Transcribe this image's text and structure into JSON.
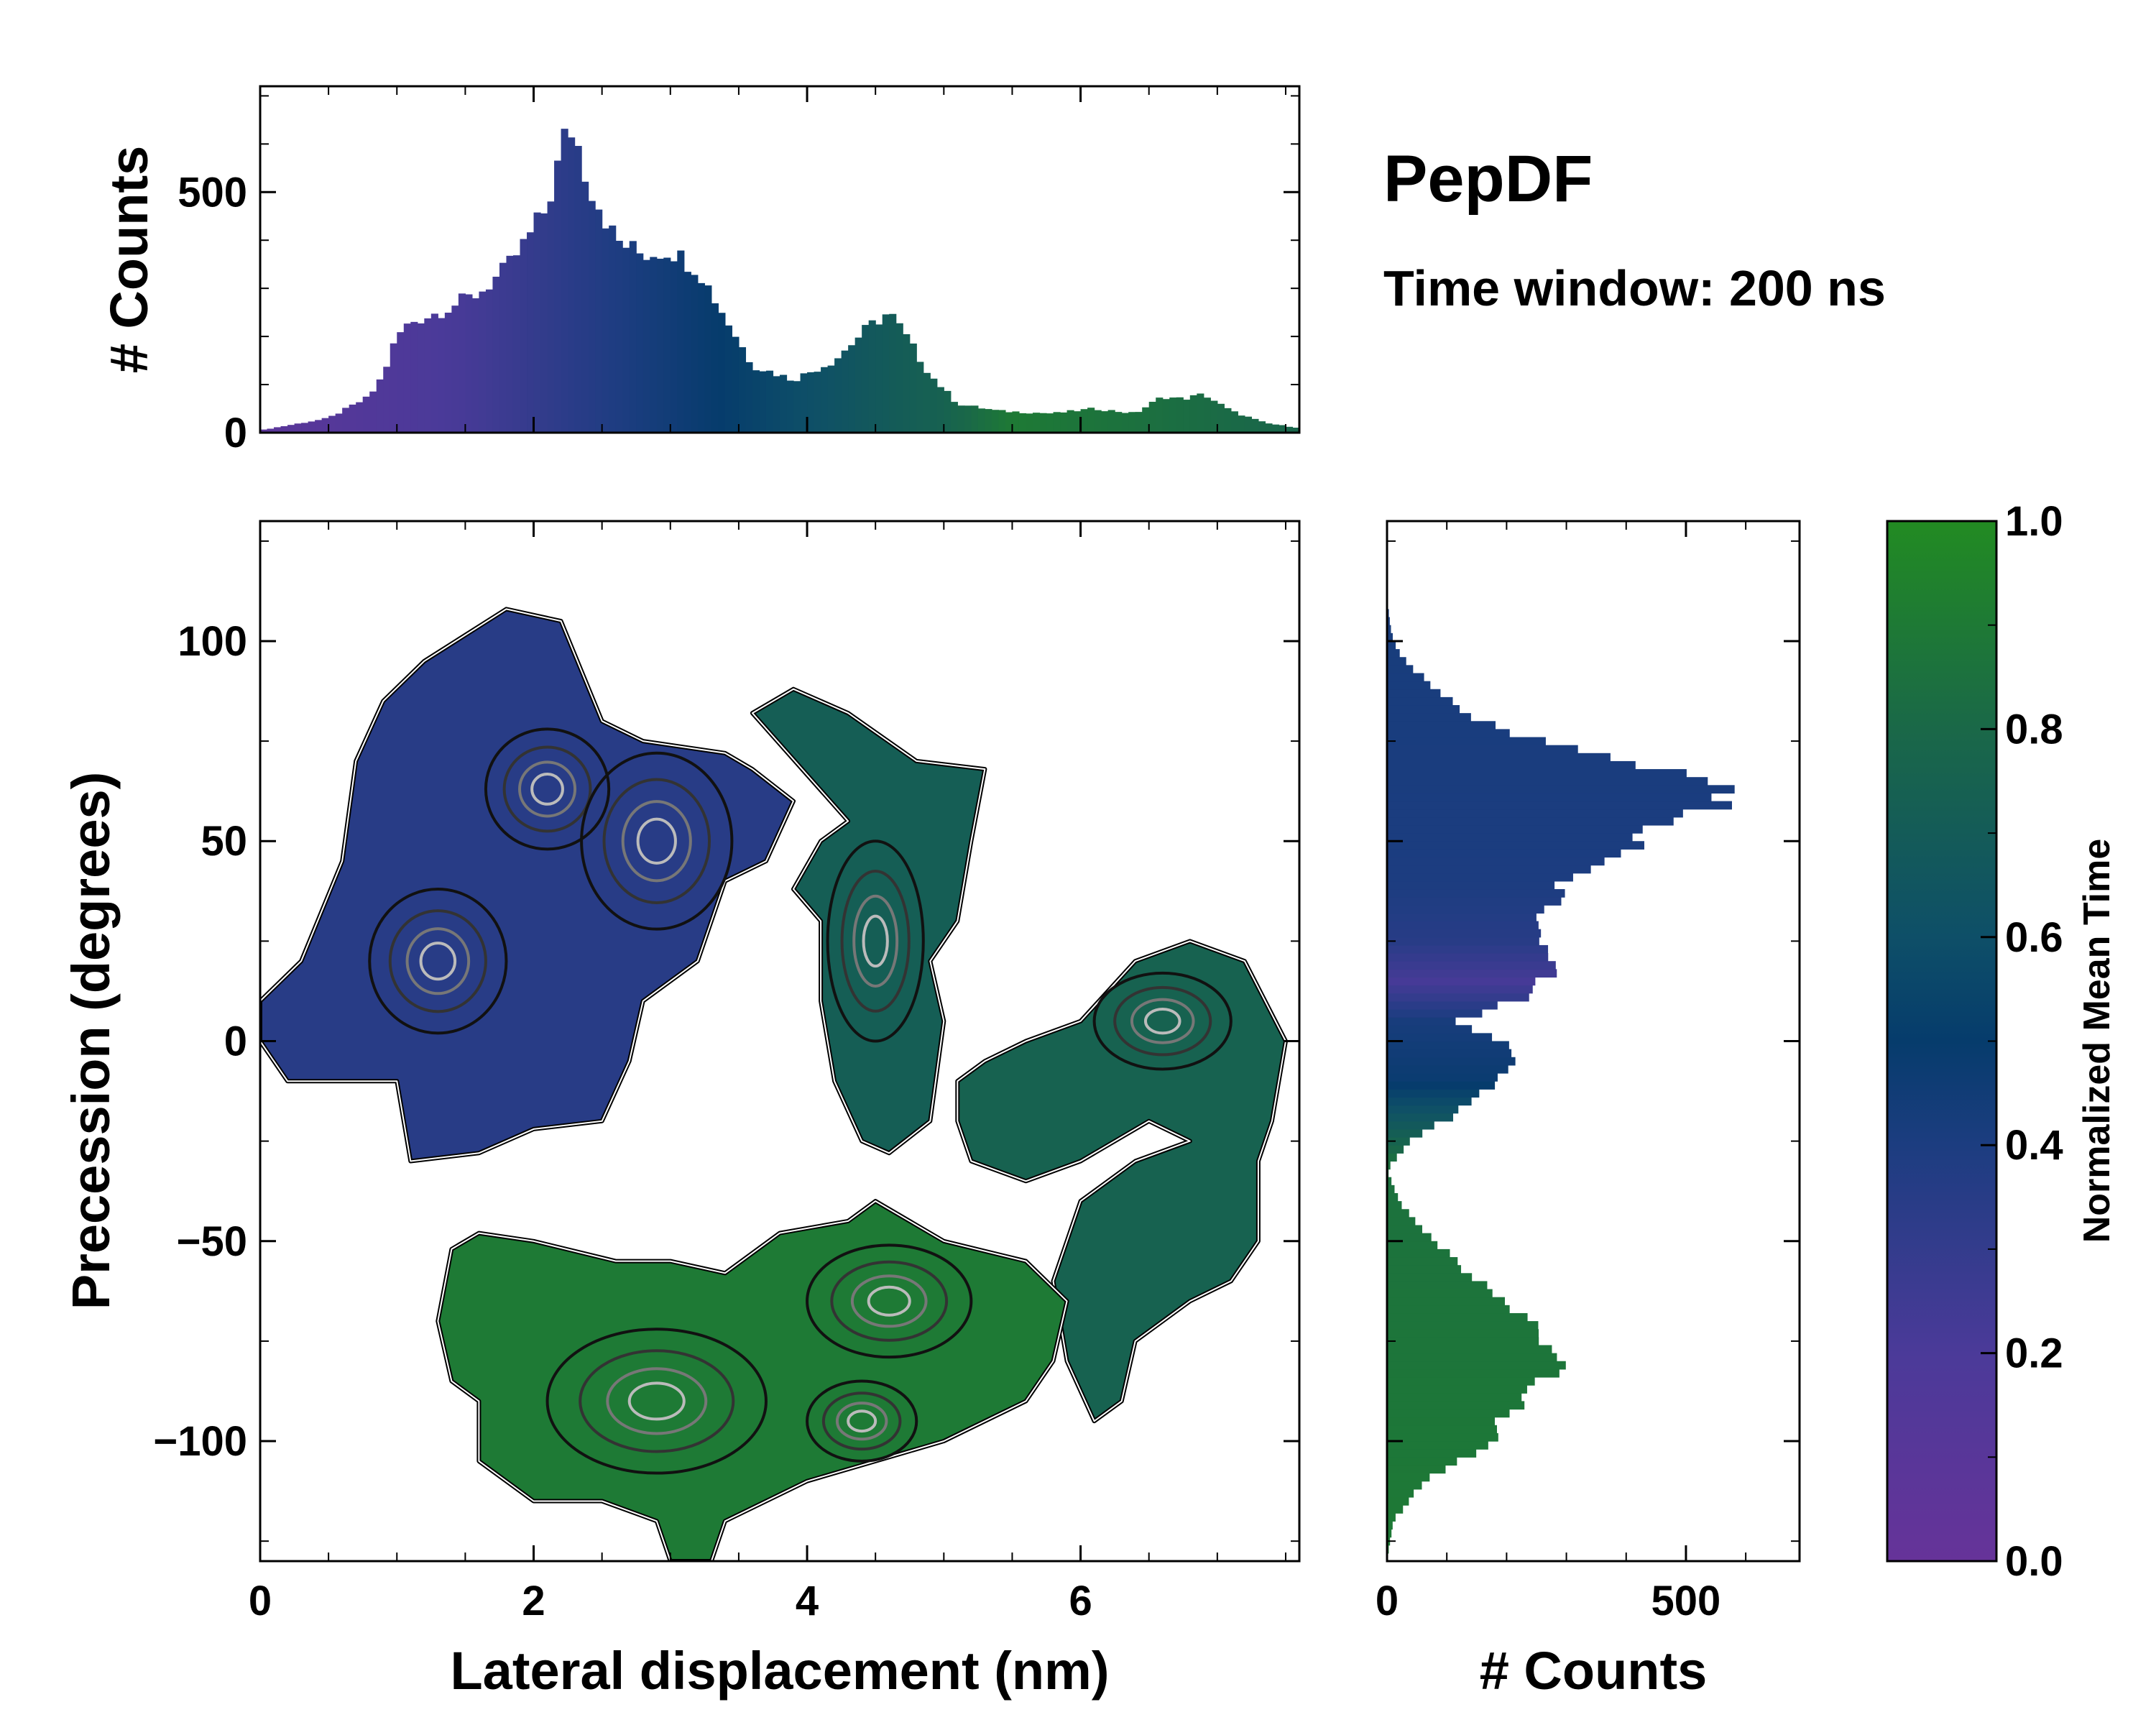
{
  "chart_data": [
    {
      "id": "top_hist",
      "type": "bar",
      "description_axis": "x",
      "ylabel": "# Counts",
      "xlim": [
        0,
        7.6
      ],
      "ylim": [
        0,
        720
      ],
      "x_ticks": [
        0,
        2,
        4,
        6
      ],
      "y_ticks": [
        0,
        500
      ],
      "y_tick_labels": [
        "0",
        "500"
      ],
      "bin_width": 0.05,
      "x_anchors": [
        0,
        0.5,
        0.8,
        0.9,
        1.0,
        1.1,
        1.3,
        1.6,
        1.8,
        1.95,
        2.1,
        2.2,
        2.25,
        2.3,
        2.4,
        2.6,
        2.8,
        3.0,
        3.2,
        3.4,
        3.6,
        3.9,
        4.2,
        4.45,
        4.6,
        4.7,
        4.9,
        5.1,
        5.4,
        5.8,
        6.1,
        6.4,
        6.6,
        6.75,
        6.9,
        7.1,
        7.35,
        7.6
      ],
      "y_anchors": [
        5,
        30,
        75,
        120,
        200,
        230,
        250,
        290,
        340,
        400,
        470,
        580,
        640,
        620,
        520,
        400,
        370,
        380,
        340,
        240,
        140,
        110,
        150,
        220,
        250,
        210,
        120,
        60,
        45,
        40,
        50,
        40,
        75,
        70,
        80,
        45,
        20,
        10
      ],
      "color_x": [
        0,
        1.5,
        2.8,
        3.5,
        4.5,
        5.0,
        5.5,
        7.6
      ],
      "color_t": [
        0.08,
        0.22,
        0.42,
        0.52,
        0.68,
        0.75,
        0.9,
        0.78
      ]
    },
    {
      "id": "main_map",
      "type": "heatmap",
      "xlabel": "Lateral displacement (nm)",
      "ylabel": "Precession (degrees)",
      "xlim": [
        0,
        7.6
      ],
      "ylim": [
        -130,
        130
      ],
      "x_ticks": [
        0,
        2,
        4,
        6
      ],
      "x_tick_labels": [
        "0",
        "2",
        "4",
        "6"
      ],
      "y_ticks": [
        100,
        50,
        0,
        -50,
        -100
      ],
      "y_tick_labels": [
        "100",
        "50",
        "0",
        "−50",
        "−100"
      ],
      "colorbar_label": "Normalized Mean Time",
      "regions": [
        {
          "name": "upper-left basin",
          "t": 0.35,
          "polygon": [
            [
              0,
              10
            ],
            [
              0.3,
              20
            ],
            [
              0.6,
              45
            ],
            [
              0.7,
              70
            ],
            [
              0.9,
              85
            ],
            [
              1.2,
              95
            ],
            [
              1.8,
              108
            ],
            [
              2.2,
              105
            ],
            [
              2.5,
              80
            ],
            [
              2.8,
              75
            ],
            [
              3.4,
              72
            ],
            [
              3.6,
              68
            ],
            [
              3.9,
              60
            ],
            [
              3.7,
              45
            ],
            [
              3.4,
              40
            ],
            [
              3.2,
              20
            ],
            [
              2.8,
              10
            ],
            [
              2.7,
              -5
            ],
            [
              2.5,
              -20
            ],
            [
              2.0,
              -22
            ],
            [
              1.6,
              -28
            ],
            [
              1.1,
              -30
            ],
            [
              1.0,
              -10
            ],
            [
              0.6,
              -10
            ],
            [
              0.2,
              -10
            ],
            [
              0,
              0
            ]
          ]
        },
        {
          "name": "right arm",
          "t": 0.72,
          "polygon": [
            [
              3.6,
              82
            ],
            [
              3.9,
              88
            ],
            [
              4.3,
              82
            ],
            [
              4.8,
              70
            ],
            [
              5.3,
              68
            ],
            [
              5.2,
              50
            ],
            [
              5.1,
              30
            ],
            [
              4.9,
              20
            ],
            [
              5.0,
              5
            ],
            [
              4.9,
              -20
            ],
            [
              4.6,
              -28
            ],
            [
              4.4,
              -25
            ],
            [
              4.2,
              -10
            ],
            [
              4.1,
              10
            ],
            [
              4.1,
              30
            ],
            [
              3.9,
              38
            ],
            [
              4.1,
              50
            ],
            [
              4.3,
              55
            ]
          ]
        },
        {
          "name": "far-right arm",
          "t": 0.75,
          "polygon": [
            [
              5.1,
              -10
            ],
            [
              5.3,
              -5
            ],
            [
              5.6,
              0
            ],
            [
              6.0,
              5
            ],
            [
              6.4,
              20
            ],
            [
              6.8,
              25
            ],
            [
              7.2,
              20
            ],
            [
              7.5,
              0
            ],
            [
              7.4,
              -20
            ],
            [
              7.3,
              -30
            ],
            [
              7.3,
              -50
            ],
            [
              7.1,
              -60
            ],
            [
              6.8,
              -65
            ],
            [
              6.4,
              -75
            ],
            [
              6.3,
              -90
            ],
            [
              6.1,
              -95
            ],
            [
              5.9,
              -80
            ],
            [
              5.8,
              -60
            ],
            [
              6.0,
              -40
            ],
            [
              6.4,
              -30
            ],
            [
              6.8,
              -25
            ],
            [
              6.5,
              -20
            ],
            [
              6.0,
              -30
            ],
            [
              5.6,
              -35
            ],
            [
              5.2,
              -30
            ],
            [
              5.1,
              -20
            ]
          ]
        },
        {
          "name": "lower basin",
          "t": 0.9,
          "polygon": [
            [
              1.3,
              -70
            ],
            [
              1.4,
              -52
            ],
            [
              1.6,
              -48
            ],
            [
              2.0,
              -50
            ],
            [
              2.6,
              -55
            ],
            [
              3.0,
              -55
            ],
            [
              3.4,
              -58
            ],
            [
              3.8,
              -48
            ],
            [
              4.3,
              -45
            ],
            [
              4.5,
              -40
            ],
            [
              5.0,
              -50
            ],
            [
              5.6,
              -55
            ],
            [
              5.9,
              -65
            ],
            [
              5.8,
              -80
            ],
            [
              5.6,
              -90
            ],
            [
              5.0,
              -100
            ],
            [
              4.5,
              -105
            ],
            [
              4.0,
              -110
            ],
            [
              3.4,
              -120
            ],
            [
              3.3,
              -130
            ],
            [
              3.0,
              -130
            ],
            [
              2.9,
              -120
            ],
            [
              2.5,
              -115
            ],
            [
              2.0,
              -115
            ],
            [
              1.6,
              -105
            ],
            [
              1.6,
              -90
            ],
            [
              1.4,
              -85
            ]
          ]
        }
      ],
      "density_contours": [
        {
          "name": "peak-upper",
          "x": 2.1,
          "y": 63,
          "rx": 0.45,
          "ry": 15
        },
        {
          "name": "peak-upper-2",
          "x": 2.9,
          "y": 50,
          "rx": 0.55,
          "ry": 22
        },
        {
          "name": "peak-upper-3",
          "x": 1.3,
          "y": 20,
          "rx": 0.5,
          "ry": 18
        },
        {
          "name": "peak-right",
          "x": 4.5,
          "y": 25,
          "rx": 0.35,
          "ry": 25
        },
        {
          "name": "peak-farright",
          "x": 6.6,
          "y": 5,
          "rx": 0.5,
          "ry": 12
        },
        {
          "name": "peak-lower",
          "x": 4.6,
          "y": -65,
          "rx": 0.6,
          "ry": 14
        },
        {
          "name": "peak-lower-2",
          "x": 2.9,
          "y": -90,
          "rx": 0.8,
          "ry": 18
        },
        {
          "name": "peak-lower-3",
          "x": 4.4,
          "y": -95,
          "rx": 0.4,
          "ry": 10
        }
      ]
    },
    {
      "id": "right_hist",
      "type": "bar",
      "orientation": "horizontal",
      "xlabel": "# Counts",
      "xlim": [
        0,
        690
      ],
      "ylim": [
        -130,
        130
      ],
      "x_ticks": [
        0,
        500
      ],
      "x_tick_labels": [
        "0",
        "500"
      ],
      "bin_width": 2,
      "y_anchors": [
        -130,
        -120,
        -110,
        -100,
        -95,
        -90,
        -85,
        -80,
        -70,
        -60,
        -50,
        -40,
        -32,
        -25,
        -15,
        -5,
        0,
        5,
        12,
        20,
        30,
        40,
        45,
        50,
        55,
        60,
        63,
        66,
        70,
        75,
        80,
        88,
        95,
        100,
        110,
        130
      ],
      "x_anchors": [
        0,
        10,
        60,
        180,
        190,
        240,
        250,
        300,
        230,
        150,
        80,
        20,
        0,
        40,
        150,
        220,
        200,
        120,
        250,
        290,
        250,
        300,
        350,
        420,
        480,
        560,
        610,
        500,
        400,
        250,
        160,
        80,
        30,
        10,
        0,
        0
      ],
      "color_y": [
        -130,
        -30,
        -10,
        5,
        15,
        25,
        40,
        100,
        130
      ],
      "color_t": [
        0.9,
        0.85,
        0.48,
        0.42,
        0.22,
        0.35,
        0.4,
        0.42,
        0.42
      ]
    },
    {
      "id": "colorbar",
      "type": "colorbar",
      "label": "Normalized Mean Time",
      "range": [
        0,
        1
      ],
      "ticks": [
        0,
        0.2,
        0.4,
        0.6,
        0.8,
        1.0
      ],
      "tick_labels": [
        "0.0",
        "0.2",
        "0.4",
        "0.6",
        "0.8",
        "1.0"
      ],
      "colormap": [
        {
          "t": 0.0,
          "color": "#663399"
        },
        {
          "t": 0.2,
          "color": "#4b3a99"
        },
        {
          "t": 0.4,
          "color": "#1c3d80"
        },
        {
          "t": 0.5,
          "color": "#063c6c"
        },
        {
          "t": 0.6,
          "color": "#0e4f68"
        },
        {
          "t": 0.8,
          "color": "#1a6848"
        },
        {
          "t": 1.0,
          "color": "#228b22"
        }
      ]
    }
  ],
  "annotations": {
    "title": "PepDF",
    "subtitle": "Time window: 200 ns"
  },
  "top_hist_ylabel": "# Counts",
  "right_hist_xlabel": "# Counts",
  "main_xlabel": "Lateral displacement (nm)",
  "main_ylabel": "Precession (degrees)",
  "cbar_label": "Normalized Mean Time"
}
